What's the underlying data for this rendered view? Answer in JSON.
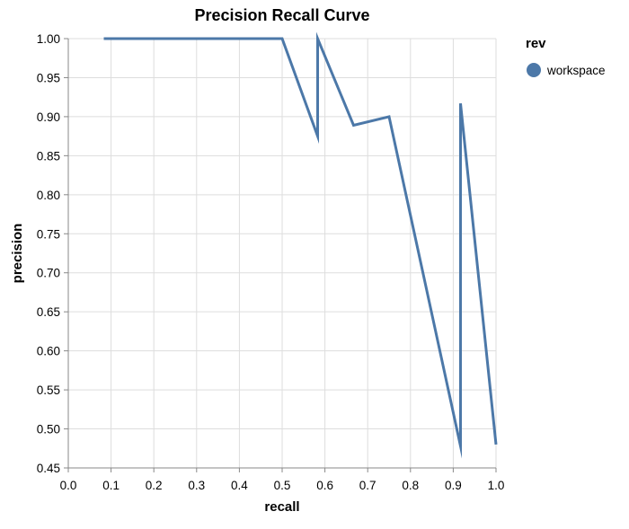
{
  "chart_data": {
    "type": "line",
    "title": "Precision Recall Curve",
    "xlabel": "recall",
    "ylabel": "precision",
    "xlim": [
      0.0,
      1.0
    ],
    "ylim": [
      0.45,
      1.0
    ],
    "x_ticks": [
      "0.0",
      "0.1",
      "0.2",
      "0.3",
      "0.4",
      "0.5",
      "0.6",
      "0.7",
      "0.8",
      "0.9",
      "1.0"
    ],
    "y_ticks": [
      "0.45",
      "0.50",
      "0.55",
      "0.60",
      "0.65",
      "0.70",
      "0.75",
      "0.80",
      "0.85",
      "0.90",
      "0.95",
      "1.00"
    ],
    "grid": true,
    "legend": {
      "title": "rev",
      "placement": "right",
      "entries": [
        {
          "label": "workspace",
          "color": "#4c78a8"
        }
      ]
    },
    "series": [
      {
        "name": "workspace",
        "color": "#4c78a8",
        "points": [
          {
            "x": 0.083,
            "y": 1.0
          },
          {
            "x": 0.5,
            "y": 1.0
          },
          {
            "x": 0.583,
            "y": 0.875
          },
          {
            "x": 0.583,
            "y": 1.0
          },
          {
            "x": 0.667,
            "y": 0.889
          },
          {
            "x": 0.75,
            "y": 0.9
          },
          {
            "x": 0.917,
            "y": 0.478
          },
          {
            "x": 0.917,
            "y": 0.917
          },
          {
            "x": 1.0,
            "y": 0.48
          }
        ]
      }
    ]
  }
}
